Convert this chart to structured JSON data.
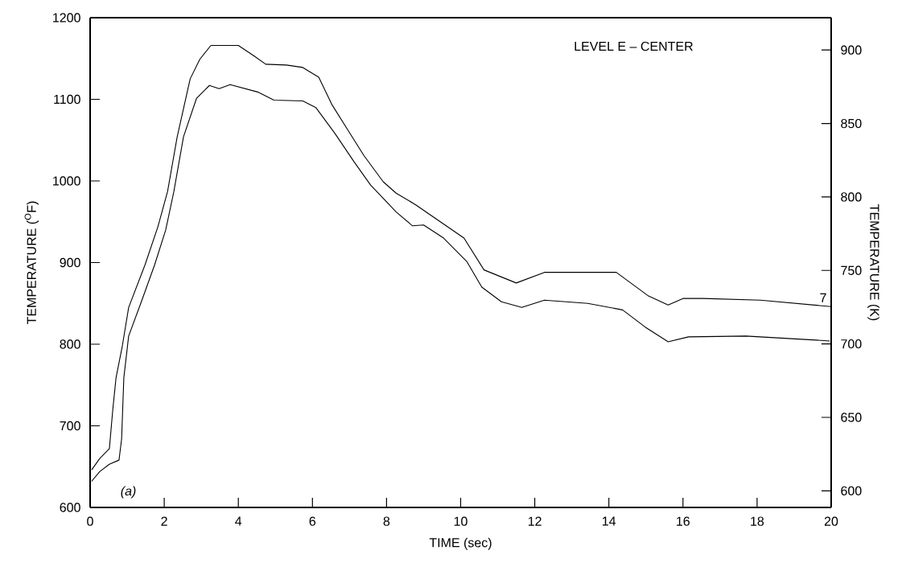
{
  "chart_data": {
    "type": "line",
    "title": "LEVEL E – CENTER",
    "xlabel": "TIME (sec)",
    "ylabel": "TEMPERATURE ($^{O}$F)",
    "y2label": "TEMPERATURE (K)",
    "xlim": [
      0,
      20
    ],
    "xticks": [
      0,
      2,
      4,
      6,
      8,
      10,
      12,
      14,
      16,
      18,
      20
    ],
    "ylim": [
      600,
      1200
    ],
    "yticks": [
      600,
      700,
      800,
      900,
      1000,
      1100,
      1200
    ],
    "y2lim": [
      588.7,
      922.0
    ],
    "y2ticks": [
      600,
      650,
      700,
      750,
      800,
      850,
      900
    ],
    "annotations": [
      "(a)"
    ],
    "series": [
      {
        "name": "7",
        "color": "#000000",
        "x": [
          0.04,
          0.26,
          0.52,
          0.61,
          0.7,
          0.87,
          1.04,
          1.48,
          1.83,
          2.09,
          2.35,
          2.7,
          2.96,
          3.26,
          4.0,
          4.43,
          4.74,
          5.3,
          5.74,
          6.17,
          6.52,
          6.96,
          7.39,
          7.91,
          8.26,
          8.78,
          10.09,
          10.63,
          11.5,
          12.26,
          14.2,
          15.07,
          15.6,
          16.0,
          16.54,
          18.09,
          20
        ],
        "values": [
          646,
          660,
          672,
          719,
          759,
          798,
          845,
          897,
          944,
          987,
          1054,
          1125,
          1149,
          1166,
          1166,
          1153,
          1143,
          1142,
          1139,
          1127,
          1094,
          1062,
          1031,
          999,
          985,
          971,
          930,
          891,
          875,
          888,
          888,
          859,
          848,
          856,
          856,
          854,
          846
        ]
      },
      {
        "color": "#000000",
        "x": [
          0.04,
          0.26,
          0.52,
          0.78,
          0.85,
          0.91,
          1.04,
          1.39,
          1.74,
          2.04,
          2.26,
          2.52,
          2.87,
          3.22,
          3.48,
          3.78,
          4.52,
          4.96,
          5.74,
          6.09,
          6.61,
          7.13,
          7.57,
          8.26,
          8.7,
          9.0,
          9.54,
          10.17,
          10.57,
          11.1,
          11.65,
          12.26,
          13.43,
          14.37,
          14.98,
          15.6,
          16.15,
          17.7,
          19.96
        ],
        "values": [
          632,
          644,
          653,
          658,
          684,
          759,
          810,
          853,
          897,
          940,
          987,
          1054,
          1101,
          1117,
          1113,
          1118,
          1109,
          1099,
          1098,
          1090,
          1058,
          1023,
          995,
          962,
          945,
          946,
          930,
          901,
          870,
          852,
          845,
          854,
          850,
          842,
          821,
          803,
          809,
          810,
          804
        ]
      }
    ]
  }
}
